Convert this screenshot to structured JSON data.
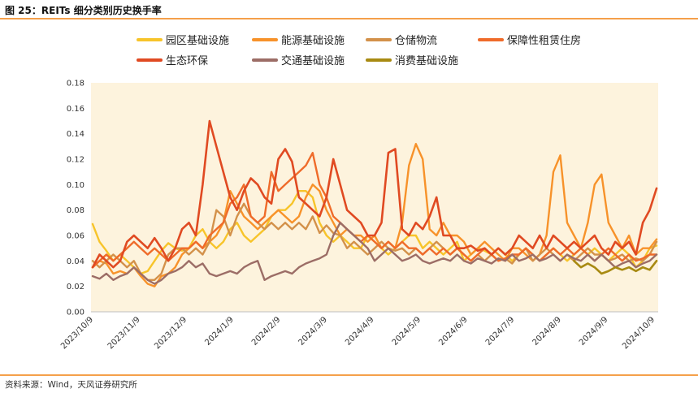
{
  "header": {
    "title": "图 25：REITs 细分类别历史换手率"
  },
  "footer": {
    "source": "资料来源：Wind，天风证券研究所"
  },
  "chart_data": {
    "type": "line",
    "title": "REITs 细分类别历史换手率",
    "xlabel": "",
    "ylabel": "",
    "ylim": [
      0,
      0.18
    ],
    "yticks": [
      0.0,
      0.02,
      0.04,
      0.06,
      0.08,
      0.1,
      0.12,
      0.14,
      0.16,
      0.18
    ],
    "ytick_labels": [
      "0.00",
      "0.02",
      "0.04",
      "0.06",
      "0.08",
      "0.10",
      "0.12",
      "0.14",
      "0.16",
      "0.18"
    ],
    "x_labels": [
      "2023/10/9",
      "2023/11/9",
      "2023/12/9",
      "2024/1/9",
      "2024/2/9",
      "2024/3/9",
      "2024/4/9",
      "2024/5/9",
      "2024/6/9",
      "2024/7/9",
      "2024/8/9",
      "2024/9/9",
      "2024/10/9"
    ],
    "legend_position": "top",
    "background": "#fdf3dd",
    "series": [
      {
        "name": "园区基础设施",
        "color": "#f7c42a",
        "width": 2.4,
        "values": [
          0.069,
          0.055,
          0.048,
          0.04,
          0.045,
          0.04,
          0.035,
          0.03,
          0.032,
          0.04,
          0.048,
          0.054,
          0.05,
          0.048,
          0.05,
          0.06,
          0.065,
          0.055,
          0.05,
          0.055,
          0.065,
          0.07,
          0.06,
          0.055,
          0.06,
          0.065,
          0.075,
          0.08,
          0.08,
          0.085,
          0.095,
          0.095,
          0.09,
          0.07,
          0.06,
          0.055,
          0.06,
          0.055,
          0.05,
          0.05,
          0.06,
          0.055,
          0.05,
          0.045,
          0.05,
          0.055,
          0.06,
          0.06,
          0.05,
          0.055,
          0.05,
          0.045,
          0.05,
          0.055,
          0.04,
          0.045,
          0.05,
          0.048,
          0.045,
          0.05,
          0.045,
          0.04,
          0.045,
          0.05,
          0.045,
          0.04,
          0.045,
          0.05,
          0.045,
          0.04,
          0.045,
          0.05,
          0.045,
          0.05,
          0.045,
          0.04,
          0.045,
          0.05,
          0.045,
          0.035,
          0.04,
          0.05,
          0.052
        ]
      },
      {
        "name": "能源基础设施",
        "color": "#f7922a",
        "width": 2.4,
        "values": [
          0.035,
          0.04,
          0.038,
          0.03,
          0.032,
          0.03,
          0.035,
          0.028,
          0.022,
          0.02,
          0.028,
          0.03,
          0.035,
          0.045,
          0.05,
          0.055,
          0.05,
          0.055,
          0.06,
          0.07,
          0.095,
          0.085,
          0.075,
          0.07,
          0.065,
          0.07,
          0.075,
          0.08,
          0.075,
          0.07,
          0.075,
          0.09,
          0.1,
          0.095,
          0.08,
          0.07,
          0.06,
          0.065,
          0.06,
          0.06,
          0.055,
          0.06,
          0.05,
          0.055,
          0.05,
          0.07,
          0.115,
          0.132,
          0.12,
          0.065,
          0.06,
          0.07,
          0.06,
          0.06,
          0.055,
          0.045,
          0.05,
          0.055,
          0.05,
          0.045,
          0.04,
          0.05,
          0.05,
          0.045,
          0.04,
          0.045,
          0.06,
          0.11,
          0.123,
          0.07,
          0.06,
          0.05,
          0.07,
          0.1,
          0.108,
          0.07,
          0.06,
          0.05,
          0.06,
          0.045,
          0.05,
          0.05,
          0.057
        ]
      },
      {
        "name": "仓储物流",
        "color": "#d3914a",
        "width": 2.4,
        "values": [
          0.04,
          0.035,
          0.04,
          0.045,
          0.04,
          0.035,
          0.04,
          0.03,
          0.025,
          0.025,
          0.03,
          0.045,
          0.05,
          0.05,
          0.045,
          0.05,
          0.045,
          0.055,
          0.08,
          0.075,
          0.06,
          0.075,
          0.085,
          0.075,
          0.07,
          0.065,
          0.07,
          0.065,
          0.07,
          0.065,
          0.07,
          0.065,
          0.075,
          0.062,
          0.068,
          0.062,
          0.06,
          0.05,
          0.055,
          0.05,
          0.045,
          0.05,
          0.055,
          0.05,
          0.048,
          0.05,
          0.045,
          0.05,
          0.045,
          0.05,
          0.055,
          0.05,
          0.045,
          0.05,
          0.045,
          0.04,
          0.045,
          0.04,
          0.045,
          0.04,
          0.042,
          0.038,
          0.045,
          0.05,
          0.04,
          0.045,
          0.05,
          0.045,
          0.04,
          0.045,
          0.04,
          0.045,
          0.05,
          0.045,
          0.045,
          0.04,
          0.042,
          0.045,
          0.04,
          0.042,
          0.04,
          0.045,
          0.055
        ]
      },
      {
        "name": "保障性租赁住房",
        "color": "#ef6b2a",
        "width": 2.4,
        "values": [
          0.035,
          0.04,
          0.045,
          0.04,
          0.045,
          0.05,
          0.055,
          0.05,
          0.045,
          0.05,
          0.045,
          0.04,
          0.045,
          0.05,
          0.05,
          0.055,
          0.05,
          0.06,
          0.065,
          0.07,
          0.085,
          0.09,
          0.1,
          0.075,
          0.07,
          0.075,
          0.11,
          0.095,
          0.1,
          0.105,
          0.11,
          0.115,
          0.125,
          0.1,
          0.09,
          0.075,
          0.07,
          0.065,
          0.06,
          0.055,
          0.06,
          0.055,
          0.05,
          0.055,
          0.05,
          0.055,
          0.05,
          0.05,
          0.045,
          0.05,
          0.045,
          0.05,
          0.045,
          0.05,
          0.045,
          0.04,
          0.045,
          0.05,
          0.045,
          0.04,
          0.042,
          0.045,
          0.045,
          0.05,
          0.045,
          0.04,
          0.045,
          0.05,
          0.045,
          0.05,
          0.045,
          0.05,
          0.045,
          0.04,
          0.045,
          0.05,
          0.045,
          0.04,
          0.045,
          0.04,
          0.042,
          0.045,
          0.045
        ]
      },
      {
        "name": "生态环保",
        "color": "#e04a22",
        "width": 2.6,
        "values": [
          0.035,
          0.045,
          0.04,
          0.035,
          0.04,
          0.055,
          0.06,
          0.055,
          0.05,
          0.058,
          0.05,
          0.04,
          0.05,
          0.065,
          0.07,
          0.06,
          0.1,
          0.15,
          0.13,
          0.11,
          0.09,
          0.08,
          0.095,
          0.105,
          0.1,
          0.09,
          0.085,
          0.12,
          0.128,
          0.118,
          0.09,
          0.085,
          0.08,
          0.075,
          0.09,
          0.12,
          0.1,
          0.08,
          0.075,
          0.07,
          0.06,
          0.06,
          0.07,
          0.125,
          0.128,
          0.065,
          0.06,
          0.07,
          0.065,
          0.075,
          0.09,
          0.06,
          0.06,
          0.05,
          0.05,
          0.052,
          0.048,
          0.05,
          0.045,
          0.05,
          0.045,
          0.05,
          0.06,
          0.055,
          0.05,
          0.06,
          0.05,
          0.06,
          0.055,
          0.05,
          0.055,
          0.05,
          0.055,
          0.06,
          0.05,
          0.045,
          0.055,
          0.05,
          0.055,
          0.045,
          0.07,
          0.08,
          0.097
        ]
      },
      {
        "name": "交通基础设施",
        "color": "#9c6d66",
        "width": 2.4,
        "values": [
          0.028,
          0.026,
          0.03,
          0.025,
          0.028,
          0.03,
          0.035,
          0.03,
          0.025,
          0.022,
          0.025,
          0.03,
          0.032,
          0.035,
          0.04,
          0.035,
          0.038,
          0.03,
          0.028,
          0.03,
          0.032,
          0.03,
          0.035,
          0.038,
          0.04,
          0.025,
          0.028,
          0.03,
          0.032,
          0.03,
          0.035,
          0.038,
          0.04,
          0.042,
          0.045,
          0.06,
          0.07,
          0.065,
          0.06,
          0.055,
          0.05,
          0.04,
          0.045,
          0.05,
          0.045,
          0.04,
          0.042,
          0.045,
          0.04,
          0.038,
          0.04,
          0.042,
          0.04,
          0.045,
          0.04,
          0.038,
          0.042,
          0.04,
          0.038,
          0.042,
          0.04,
          0.045,
          0.04,
          0.042,
          0.045,
          0.04,
          0.042,
          0.045,
          0.04,
          0.045,
          0.042,
          0.04,
          0.045,
          0.04,
          0.045,
          0.04,
          0.035,
          0.038,
          0.04,
          0.035,
          0.038,
          0.04,
          0.045
        ]
      },
      {
        "name": "消费基础设施",
        "color": "#a88a12",
        "width": 2.6,
        "start_index": 70,
        "values": [
          0.04,
          0.035,
          0.038,
          0.035,
          0.03,
          0.032,
          0.035,
          0.033,
          0.035,
          0.032,
          0.035,
          0.033,
          0.04
        ]
      }
    ]
  }
}
